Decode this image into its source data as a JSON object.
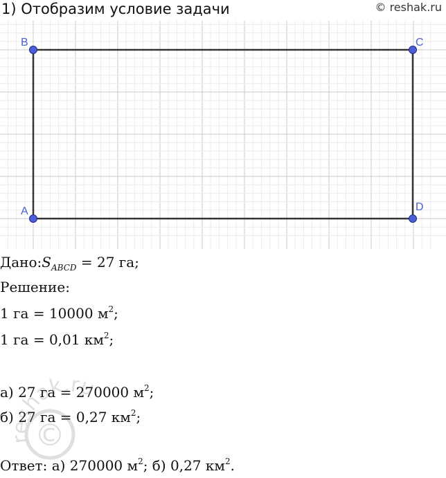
{
  "heading": "1) Отобразим условие задачи",
  "copyright": "© reshak.ru",
  "figure": {
    "labels": {
      "A": "A",
      "B": "B",
      "C": "C",
      "D": "D"
    },
    "point_color": "#4a5fd6",
    "point_stroke": "#1e2a8a",
    "edge_color": "#333333",
    "grid_major": "#c9c9c9",
    "grid_minor": "#ececec"
  },
  "given": {
    "label": "Дано:",
    "s": "S",
    "sub": "ABCD",
    "rest": "= 27 га;"
  },
  "solution_label": "Решение:",
  "eq1": {
    "text": "1 га = 10000 м",
    "sup": "2",
    "end": ";"
  },
  "eq2": {
    "text": "1 га = 0,01 км",
    "sup": "2",
    "end": ";"
  },
  "part_a": {
    "text": "а) 27 га = 270000 м",
    "sup": "2",
    "end": ";"
  },
  "part_b": {
    "text": "б) 27 га = 0,27 км",
    "sup": "2",
    "end": ";"
  },
  "answer": {
    "prefix": "Ответ: а) 270000 м",
    "sup1": "2",
    "mid": "; б) 0,27 км",
    "sup2": "2",
    "end": "."
  },
  "watermark_text": "reshak.ru"
}
